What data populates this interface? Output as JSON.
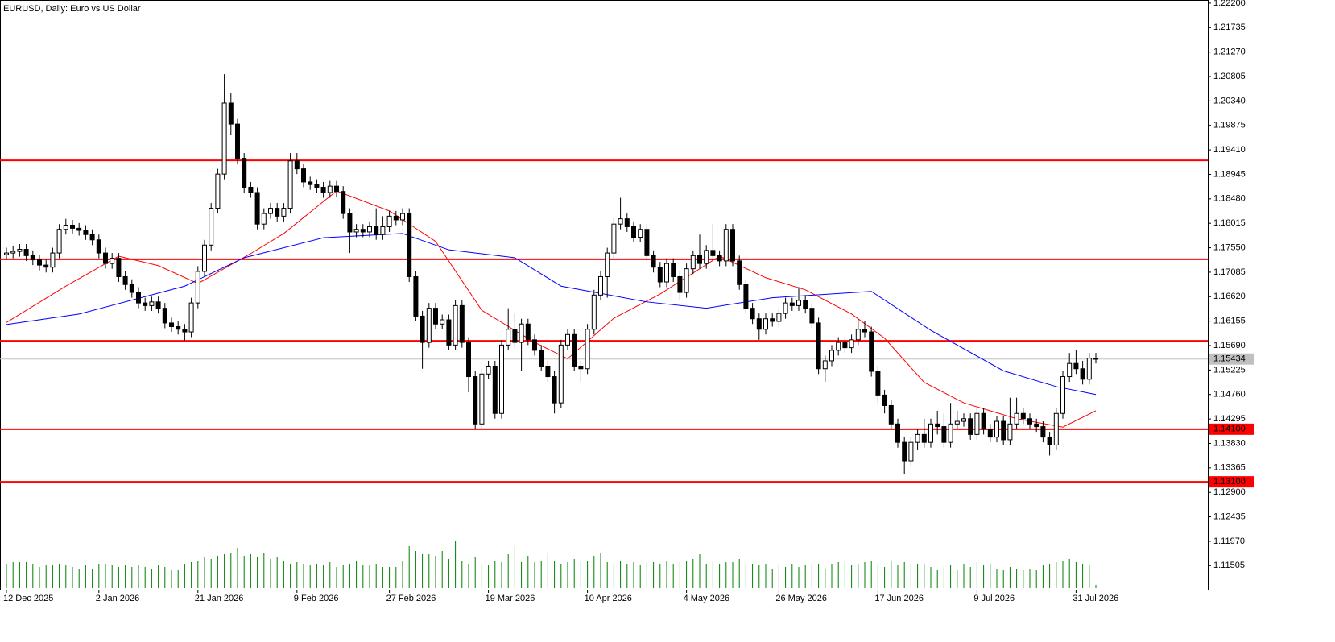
{
  "chart_data": {
    "type": "candlestick",
    "title": "EURUSD, Daily:  Euro vs US Dollar",
    "categories": [
      "12 Dec 2025",
      null,
      null,
      null,
      null,
      null,
      null,
      null,
      null,
      null,
      null,
      null,
      null,
      null,
      "2 Jan 2026",
      null,
      null,
      null,
      null,
      null,
      null,
      null,
      null,
      null,
      null,
      null,
      null,
      null,
      null,
      "21 Jan 2026",
      null,
      null,
      null,
      null,
      null,
      null,
      null,
      null,
      null,
      null,
      null,
      null,
      null,
      null,
      "9 Feb 2026",
      null,
      null,
      null,
      null,
      null,
      null,
      null,
      null,
      null,
      null,
      null,
      null,
      null,
      "27 Feb 2026",
      null,
      null,
      null,
      null,
      null,
      null,
      null,
      null,
      null,
      null,
      null,
      null,
      null,
      null,
      "19 Mar 2026",
      null,
      null,
      null,
      null,
      null,
      null,
      null,
      null,
      null,
      null,
      null,
      null,
      null,
      null,
      "10 Apr 2026",
      null,
      null,
      null,
      null,
      null,
      null,
      null,
      null,
      null,
      null,
      null,
      null,
      null,
      null,
      "4 May 2026",
      null,
      null,
      null,
      null,
      null,
      null,
      null,
      null,
      null,
      null,
      null,
      null,
      null,
      "26 May 2026",
      null,
      null,
      null,
      null,
      null,
      null,
      null,
      null,
      null,
      null,
      null,
      null,
      null,
      null,
      "17 Jun 2026",
      null,
      null,
      null,
      null,
      null,
      null,
      null,
      null,
      null,
      null,
      null,
      null,
      null,
      null,
      "9 Jul 2026",
      null,
      null,
      null,
      null,
      null,
      null,
      null,
      null,
      null,
      null,
      null,
      null,
      null,
      null,
      "31 Jul 2026",
      null,
      null,
      null
    ],
    "open": [
      1.1742,
      1.1745,
      1.1748,
      1.1752,
      1.174,
      1.1732,
      1.1722,
      1.1718,
      1.1745,
      1.179,
      1.1798,
      1.1792,
      1.1788,
      1.178,
      1.177,
      1.1745,
      1.1725,
      1.1735,
      1.17,
      1.1685,
      1.167,
      1.165,
      1.1645,
      1.1652,
      1.164,
      1.1612,
      1.1605,
      1.16,
      1.1595,
      1.165,
      1.171,
      1.176,
      1.183,
      1.1895,
      1.203,
      1.199,
      1.1925,
      1.187,
      1.186,
      1.18,
      1.182,
      1.183,
      1.1815,
      1.183,
      1.192,
      1.1905,
      1.188,
      1.1875,
      1.187,
      1.186,
      1.1872,
      1.1862,
      1.182,
      1.1785,
      1.179,
      1.1785,
      1.1795,
      1.178,
      1.1795,
      1.1815,
      1.1808,
      1.182,
      1.17,
      1.1625,
      1.1575,
      1.164,
      1.161,
      1.1618,
      1.157,
      1.1645,
      1.1575,
      1.151,
      1.142,
      1.1515,
      1.153,
      1.144,
      1.157,
      1.16,
      1.1575,
      1.161,
      1.158,
      1.156,
      1.153,
      1.151,
      1.146,
      1.157,
      1.159,
      1.153,
      1.1525,
      1.16,
      1.1665,
      1.17,
      1.1745,
      1.18,
      1.181,
      1.1795,
      1.1775,
      1.179,
      1.174,
      1.1718,
      1.169,
      1.1725,
      1.17,
      1.167,
      1.1715,
      1.174,
      1.1725,
      1.175,
      1.174,
      1.173,
      1.179,
      1.173,
      1.1685,
      1.164,
      1.162,
      1.16,
      1.162,
      1.1615,
      1.163,
      1.165,
      1.1645,
      1.1655,
      1.164,
      1.1612,
      1.1525,
      1.154,
      1.156,
      1.1575,
      1.1565,
      1.158,
      1.16,
      1.1595,
      1.152,
      1.1475,
      1.1455,
      1.142,
      1.1385,
      1.135,
      1.1385,
      1.14,
      1.1385,
      1.142,
      1.1415,
      1.1385,
      1.142,
      1.1425,
      1.143,
      1.14,
      1.144,
      1.141,
      1.1395,
      1.1425,
      1.139,
      1.142,
      1.144,
      1.143,
      1.142,
      1.1415,
      1.1395,
      1.138,
      1.144,
      1.151,
      1.1535,
      1.1525,
      1.1505,
      1.1545
    ],
    "high": [
      1.1755,
      1.1758,
      1.1762,
      1.1762,
      1.175,
      1.1742,
      1.1732,
      1.1755,
      1.18,
      1.181,
      1.1808,
      1.1802,
      1.1798,
      1.179,
      1.178,
      1.1755,
      1.1745,
      1.1745,
      1.171,
      1.1695,
      1.168,
      1.166,
      1.1662,
      1.1662,
      1.165,
      1.1622,
      1.1615,
      1.161,
      1.166,
      1.172,
      1.177,
      1.184,
      1.1905,
      1.2085,
      1.205,
      1.2,
      1.1935,
      1.188,
      1.187,
      1.183,
      1.184,
      1.184,
      1.184,
      1.1935,
      1.1935,
      1.1915,
      1.189,
      1.1885,
      1.188,
      1.1882,
      1.1882,
      1.1872,
      1.183,
      1.18,
      1.18,
      1.1805,
      1.183,
      1.1815,
      1.1825,
      1.1825,
      1.183,
      1.183,
      1.171,
      1.1635,
      1.165,
      1.165,
      1.1628,
      1.1628,
      1.1655,
      1.1655,
      1.1585,
      1.152,
      1.1525,
      1.154,
      1.154,
      1.158,
      1.164,
      1.163,
      1.162,
      1.162,
      1.159,
      1.157,
      1.154,
      1.152,
      1.158,
      1.16,
      1.16,
      1.154,
      1.161,
      1.1675,
      1.171,
      1.1755,
      1.181,
      1.185,
      1.182,
      1.1805,
      1.18,
      1.18,
      1.175,
      1.1728,
      1.1735,
      1.1735,
      1.171,
      1.1725,
      1.175,
      1.178,
      1.176,
      1.18,
      1.175,
      1.18,
      1.18,
      1.174,
      1.1695,
      1.165,
      1.163,
      1.163,
      1.163,
      1.164,
      1.166,
      1.166,
      1.168,
      1.1665,
      1.165,
      1.1622,
      1.155,
      1.157,
      1.1585,
      1.1585,
      1.159,
      1.162,
      1.1615,
      1.1605,
      1.153,
      1.1485,
      1.1465,
      1.143,
      1.1395,
      1.1395,
      1.141,
      1.143,
      1.143,
      1.1445,
      1.144,
      1.146,
      1.1445,
      1.144,
      1.144,
      1.145,
      1.145,
      1.142,
      1.1435,
      1.1435,
      1.147,
      1.147,
      1.145,
      1.144,
      1.143,
      1.1425,
      1.1405,
      1.145,
      1.152,
      1.1555,
      1.156,
      1.154,
      1.1555,
      1.1555
    ],
    "low": [
      1.1732,
      1.1735,
      1.1738,
      1.173,
      1.1722,
      1.1712,
      1.1708,
      1.1708,
      1.1735,
      1.178,
      1.1782,
      1.1778,
      1.177,
      1.176,
      1.1735,
      1.1715,
      1.1715,
      1.169,
      1.1675,
      1.166,
      1.164,
      1.1635,
      1.1635,
      1.163,
      1.1602,
      1.1595,
      1.159,
      1.1578,
      1.1585,
      1.164,
      1.17,
      1.175,
      1.182,
      1.1885,
      1.197,
      1.1915,
      1.186,
      1.185,
      1.179,
      1.179,
      1.181,
      1.1805,
      1.1805,
      1.182,
      1.1895,
      1.187,
      1.1865,
      1.186,
      1.185,
      1.185,
      1.1852,
      1.181,
      1.1745,
      1.1775,
      1.1775,
      1.1775,
      1.177,
      1.177,
      1.1785,
      1.1798,
      1.1798,
      1.169,
      1.1615,
      1.1525,
      1.1565,
      1.16,
      1.16,
      1.156,
      1.156,
      1.1565,
      1.148,
      1.141,
      1.141,
      1.1505,
      1.143,
      1.143,
      1.156,
      1.1565,
      1.152,
      1.157,
      1.155,
      1.152,
      1.15,
      1.144,
      1.145,
      1.156,
      1.152,
      1.15,
      1.1515,
      1.159,
      1.1655,
      1.166,
      1.1735,
      1.179,
      1.1785,
      1.1765,
      1.1765,
      1.173,
      1.1708,
      1.168,
      1.168,
      1.169,
      1.1655,
      1.166,
      1.1705,
      1.1715,
      1.1715,
      1.173,
      1.172,
      1.172,
      1.172,
      1.1675,
      1.163,
      1.161,
      1.158,
      1.159,
      1.1605,
      1.1605,
      1.162,
      1.1635,
      1.1635,
      1.163,
      1.1602,
      1.1515,
      1.15,
      1.153,
      1.155,
      1.1555,
      1.1555,
      1.157,
      1.1585,
      1.151,
      1.146,
      1.144,
      1.141,
      1.1375,
      1.1325,
      1.134,
      1.137,
      1.1375,
      1.1375,
      1.14,
      1.1375,
      1.1375,
      1.141,
      1.1415,
      1.139,
      1.139,
      1.14,
      1.1385,
      1.1385,
      1.138,
      1.138,
      1.141,
      1.142,
      1.141,
      1.1405,
      1.1385,
      1.136,
      1.137,
      1.143,
      1.15,
      1.1515,
      1.1495,
      1.1495,
      1.1535
    ],
    "close": [
      1.1745,
      1.1748,
      1.1752,
      1.174,
      1.1732,
      1.1722,
      1.1718,
      1.1745,
      1.179,
      1.1798,
      1.1792,
      1.1788,
      1.178,
      1.177,
      1.1745,
      1.1725,
      1.1735,
      1.17,
      1.1685,
      1.167,
      1.165,
      1.1645,
      1.1652,
      1.164,
      1.1612,
      1.1605,
      1.16,
      1.1595,
      1.165,
      1.171,
      1.176,
      1.183,
      1.1895,
      1.203,
      1.199,
      1.1925,
      1.187,
      1.186,
      1.18,
      1.182,
      1.183,
      1.1815,
      1.183,
      1.192,
      1.1905,
      1.188,
      1.1875,
      1.187,
      1.186,
      1.1872,
      1.1862,
      1.182,
      1.1785,
      1.179,
      1.1785,
      1.1795,
      1.178,
      1.1795,
      1.1815,
      1.1808,
      1.182,
      1.17,
      1.1625,
      1.1575,
      1.164,
      1.161,
      1.1618,
      1.157,
      1.1645,
      1.1575,
      1.151,
      1.142,
      1.1515,
      1.153,
      1.144,
      1.157,
      1.16,
      1.1575,
      1.161,
      1.158,
      1.156,
      1.153,
      1.151,
      1.146,
      1.157,
      1.159,
      1.153,
      1.1525,
      1.16,
      1.1665,
      1.17,
      1.1745,
      1.18,
      1.181,
      1.1795,
      1.1775,
      1.179,
      1.174,
      1.1718,
      1.169,
      1.1725,
      1.17,
      1.167,
      1.1715,
      1.174,
      1.1725,
      1.175,
      1.174,
      1.173,
      1.179,
      1.173,
      1.1685,
      1.164,
      1.162,
      1.16,
      1.162,
      1.1615,
      1.163,
      1.165,
      1.1645,
      1.1655,
      1.164,
      1.1612,
      1.1525,
      1.154,
      1.156,
      1.1575,
      1.1565,
      1.158,
      1.16,
      1.1595,
      1.152,
      1.1475,
      1.1455,
      1.142,
      1.1385,
      1.135,
      1.1385,
      1.14,
      1.1385,
      1.142,
      1.1415,
      1.1385,
      1.142,
      1.1425,
      1.143,
      1.14,
      1.144,
      1.141,
      1.1395,
      1.1425,
      1.139,
      1.142,
      1.144,
      1.143,
      1.142,
      1.1415,
      1.1395,
      1.138,
      1.144,
      1.151,
      1.1535,
      1.1525,
      1.1505,
      1.1545,
      1.1543
    ],
    "volume": {
      "color": "#008000",
      "values": [
        30,
        32,
        32,
        32,
        30,
        26,
        28,
        28,
        30,
        28,
        26,
        24,
        28,
        24,
        30,
        30,
        28,
        26,
        28,
        26,
        28,
        26,
        24,
        28,
        26,
        22,
        22,
        30,
        32,
        34,
        38,
        36,
        40,
        42,
        44,
        50,
        40,
        42,
        38,
        44,
        36,
        38,
        34,
        30,
        32,
        30,
        28,
        30,
        28,
        32,
        26,
        28,
        30,
        34,
        28,
        28,
        30,
        26,
        26,
        26,
        34,
        52,
        46,
        42,
        42,
        40,
        46,
        36,
        58,
        34,
        30,
        38,
        30,
        28,
        34,
        32,
        42,
        52,
        32,
        40,
        32,
        34,
        44,
        34,
        30,
        32,
        36,
        32,
        34,
        40,
        44,
        32,
        30,
        34,
        30,
        32,
        28,
        32,
        32,
        30,
        34,
        30,
        32,
        34,
        36,
        42,
        30,
        34,
        30,
        32,
        32,
        36,
        30,
        30,
        28,
        30,
        24,
        28,
        26,
        30,
        26,
        28,
        30,
        30,
        24,
        30,
        32,
        34,
        28,
        30,
        32,
        34,
        30,
        26,
        34,
        28,
        32,
        30,
        30,
        30,
        26,
        22,
        26,
        28,
        22,
        30,
        26,
        32,
        28,
        30,
        24,
        22,
        26,
        24,
        22,
        24,
        22,
        28,
        30,
        32,
        34,
        36,
        32,
        30,
        28,
        4
      ]
    },
    "moving_averages": [
      {
        "color": "#ff0000",
        "x": [
          0,
          9,
          17,
          23,
          29,
          37,
          42,
          50,
          58,
          65,
          72,
          80,
          85,
          92,
          99,
          108,
          115,
          121,
          128,
          133,
          139,
          145,
          153,
          160,
          165
        ],
        "values": [
          1.1613,
          1.1682,
          1.1739,
          1.1721,
          1.1687,
          1.1744,
          1.1782,
          1.1863,
          1.1825,
          1.1767,
          1.1636,
          1.1575,
          1.1544,
          1.1621,
          1.1667,
          1.1739,
          1.1698,
          1.1675,
          1.1629,
          1.1583,
          1.1499,
          1.146,
          1.143,
          1.1414,
          1.1445
        ]
      },
      {
        "color": "#0000ff",
        "x": [
          0,
          11,
          27,
          36,
          48,
          60,
          67,
          77,
          84,
          97,
          106,
          116,
          131,
          140,
          151,
          159,
          165
        ],
        "values": [
          1.1609,
          1.1629,
          1.1682,
          1.1736,
          1.1774,
          1.1782,
          1.1751,
          1.1736,
          1.1682,
          1.1652,
          1.164,
          1.166,
          1.1672,
          1.1598,
          1.1521,
          1.1491,
          1.1476
        ]
      }
    ],
    "levels": [
      {
        "value": 1.1921
      },
      {
        "value": 1.1733
      },
      {
        "value": 1.1578
      },
      {
        "value": 1.141,
        "label": "1.14100"
      },
      {
        "value": 1.131,
        "label": "1.13100"
      }
    ],
    "level_color": "#ff0000",
    "current_price": {
      "value": 1.15434,
      "label": "1.15434"
    },
    "ylim": [
      1.1105,
      1.2226
    ],
    "yticks": [
      {
        "value": 1.222,
        "label": "1.22200"
      },
      {
        "value": 1.21735,
        "label": "1.21735"
      },
      {
        "value": 1.2127,
        "label": "1.21270"
      },
      {
        "value": 1.20805,
        "label": "1.20805"
      },
      {
        "value": 1.2034,
        "label": "1.20340"
      },
      {
        "value": 1.19875,
        "label": "1.19875"
      },
      {
        "value": 1.1941,
        "label": "1.19410"
      },
      {
        "value": 1.18945,
        "label": "1.18945"
      },
      {
        "value": 1.1848,
        "label": "1.18480"
      },
      {
        "value": 1.18015,
        "label": "1.18015"
      },
      {
        "value": 1.1755,
        "label": "1.17550"
      },
      {
        "value": 1.17085,
        "label": "1.17085"
      },
      {
        "value": 1.1662,
        "label": "1.16620"
      },
      {
        "value": 1.16155,
        "label": "1.16155"
      },
      {
        "value": 1.1569,
        "label": "1.15690"
      },
      {
        "value": 1.15225,
        "label": "1.15225"
      },
      {
        "value": 1.1476,
        "label": "1.14760"
      },
      {
        "value": 1.14295,
        "label": "1.14295"
      },
      {
        "value": 1.1383,
        "label": "1.13830"
      },
      {
        "value": 1.13365,
        "label": "1.13365"
      },
      {
        "value": 1.129,
        "label": "1.12900"
      },
      {
        "value": 1.12435,
        "label": "1.12435"
      },
      {
        "value": 1.1197,
        "label": "1.11970"
      },
      {
        "value": 1.11505,
        "label": "1.11505"
      }
    ],
    "grid": false
  }
}
